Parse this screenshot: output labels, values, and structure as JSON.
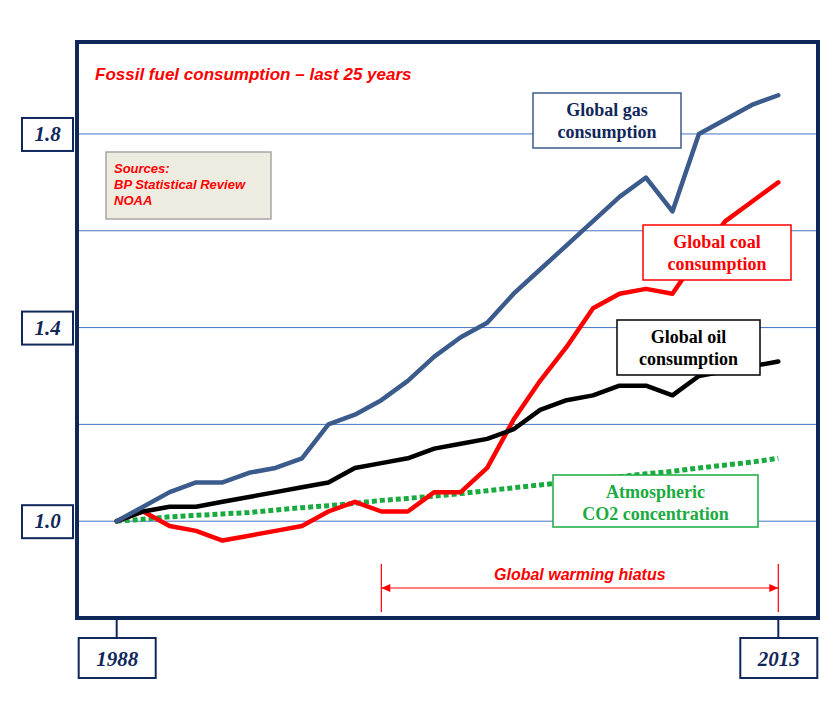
{
  "chart_data": {
    "type": "line",
    "title": "Fossil fuel consumption – last 25 years",
    "notes": [
      "Sources:",
      "BP Statistical Review",
      "NOAA"
    ],
    "annotations": [
      {
        "text": "Global warming hiatus",
        "x": [
          1998,
          2013
        ]
      }
    ],
    "x": [
      1988,
      1989,
      1990,
      1991,
      1992,
      1993,
      1994,
      1995,
      1996,
      1997,
      1998,
      1999,
      2000,
      2001,
      2002,
      2003,
      2004,
      2005,
      2006,
      2007,
      2008,
      2009,
      2010,
      2011,
      2012,
      2013
    ],
    "xlim": [
      1986.5,
      2014.5
    ],
    "xticks": [
      1988,
      2013
    ],
    "ylim": [
      0.8,
      1.99
    ],
    "yticks": [
      {
        "value": 1.0,
        "label": "1.0"
      },
      {
        "value": 1.4,
        "label": "1.4"
      },
      {
        "value": 1.8,
        "label": "1.8"
      }
    ],
    "grid": true,
    "series": [
      {
        "name": "Global gas consumption",
        "color": "#3b5b8c",
        "line_style": "solid",
        "values": [
          1.0,
          1.03,
          1.06,
          1.08,
          1.08,
          1.1,
          1.11,
          1.13,
          1.2,
          1.22,
          1.25,
          1.29,
          1.34,
          1.38,
          1.41,
          1.47,
          1.52,
          1.57,
          1.62,
          1.67,
          1.71,
          1.64,
          1.8,
          1.83,
          1.86,
          1.88
        ]
      },
      {
        "name": "Global coal consumption",
        "color": "#ff0000",
        "line_style": "solid",
        "values": [
          1.0,
          1.02,
          0.99,
          0.98,
          0.96,
          0.97,
          0.98,
          0.99,
          1.02,
          1.04,
          1.02,
          1.02,
          1.06,
          1.06,
          1.11,
          1.21,
          1.29,
          1.36,
          1.44,
          1.47,
          1.48,
          1.47,
          1.55,
          1.62,
          1.66,
          1.7
        ]
      },
      {
        "name": "Global oil consumption",
        "color": "#000000",
        "line_style": "solid",
        "values": [
          1.0,
          1.02,
          1.03,
          1.03,
          1.04,
          1.05,
          1.06,
          1.07,
          1.08,
          1.11,
          1.12,
          1.13,
          1.15,
          1.16,
          1.17,
          1.19,
          1.23,
          1.25,
          1.26,
          1.28,
          1.28,
          1.26,
          1.3,
          1.31,
          1.32,
          1.33
        ]
      },
      {
        "name": "Atmospheric CO2 concentration",
        "color": "#1aab40",
        "line_style": "dotted",
        "values": [
          1.0,
          1.004,
          1.009,
          1.012,
          1.015,
          1.018,
          1.023,
          1.028,
          1.032,
          1.037,
          1.043,
          1.047,
          1.052,
          1.057,
          1.063,
          1.069,
          1.075,
          1.08,
          1.087,
          1.092,
          1.098,
          1.103,
          1.11,
          1.116,
          1.122,
          1.13
        ]
      }
    ]
  }
}
